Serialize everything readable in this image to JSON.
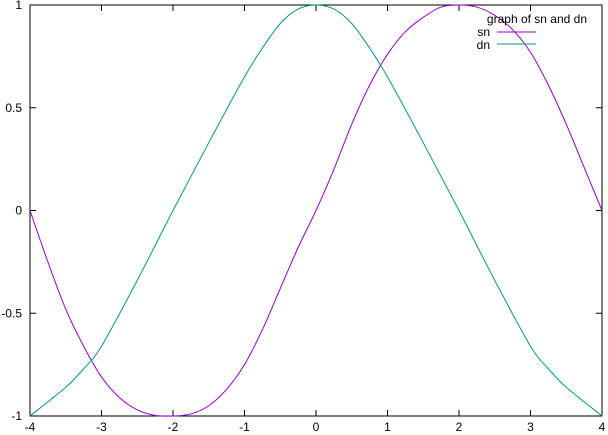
{
  "chart_data": {
    "type": "line",
    "xlim": [
      -4,
      4
    ],
    "ylim": [
      -1,
      1
    ],
    "xticks": [
      -4,
      -3,
      -2,
      -1,
      0,
      1,
      2,
      3,
      4
    ],
    "yticks": [
      -1,
      -0.5,
      0,
      0.5,
      1
    ],
    "xtick_labels": [
      "-4",
      "-3",
      "-2",
      "-1",
      "0",
      "1",
      "2",
      "3",
      "4"
    ],
    "ytick_labels": [
      "-1",
      "-0.5",
      "0",
      "0.5",
      "1"
    ],
    "grid": false,
    "legend_placement": "top-right",
    "legend_title": "graph of sn and dn",
    "series": [
      {
        "name": "sn",
        "color": "#9400d3",
        "x": [
          -4,
          -3.75,
          -3.5,
          -3.25,
          -3,
          -2.75,
          -2.5,
          -2.25,
          -2,
          -1.75,
          -1.5,
          -1.25,
          -1,
          -0.75,
          -0.5,
          -0.25,
          0,
          0.25,
          0.5,
          0.75,
          1,
          1.25,
          1.5,
          1.75,
          2,
          2.25,
          2.5,
          2.75,
          3,
          3.25,
          3.5,
          3.75,
          4
        ],
        "y": [
          0,
          -0.25,
          -0.48,
          -0.66,
          -0.81,
          -0.91,
          -0.97,
          -0.997,
          -1,
          -0.99,
          -0.95,
          -0.87,
          -0.75,
          -0.58,
          -0.38,
          -0.18,
          0,
          0.2,
          0.42,
          0.61,
          0.76,
          0.87,
          0.94,
          0.99,
          1,
          0.99,
          0.95,
          0.88,
          0.77,
          0.61,
          0.42,
          0.21,
          0
        ]
      },
      {
        "name": "dn",
        "color": "#009e73",
        "x": [
          -4,
          -3.5,
          -3.25,
          -3,
          -2.5,
          -2,
          -1.5,
          -1,
          -0.75,
          -0.5,
          -0.25,
          0,
          0.25,
          0.5,
          0.75,
          1,
          1.5,
          2,
          2.5,
          3,
          3.25,
          3.5,
          4
        ],
        "y": [
          -1,
          -0.86,
          -0.77,
          -0.66,
          -0.34,
          0,
          0.33,
          0.65,
          0.79,
          0.91,
          0.98,
          1,
          0.98,
          0.91,
          0.79,
          0.65,
          0.33,
          0,
          -0.34,
          -0.66,
          -0.77,
          -0.86,
          -1
        ]
      }
    ]
  }
}
